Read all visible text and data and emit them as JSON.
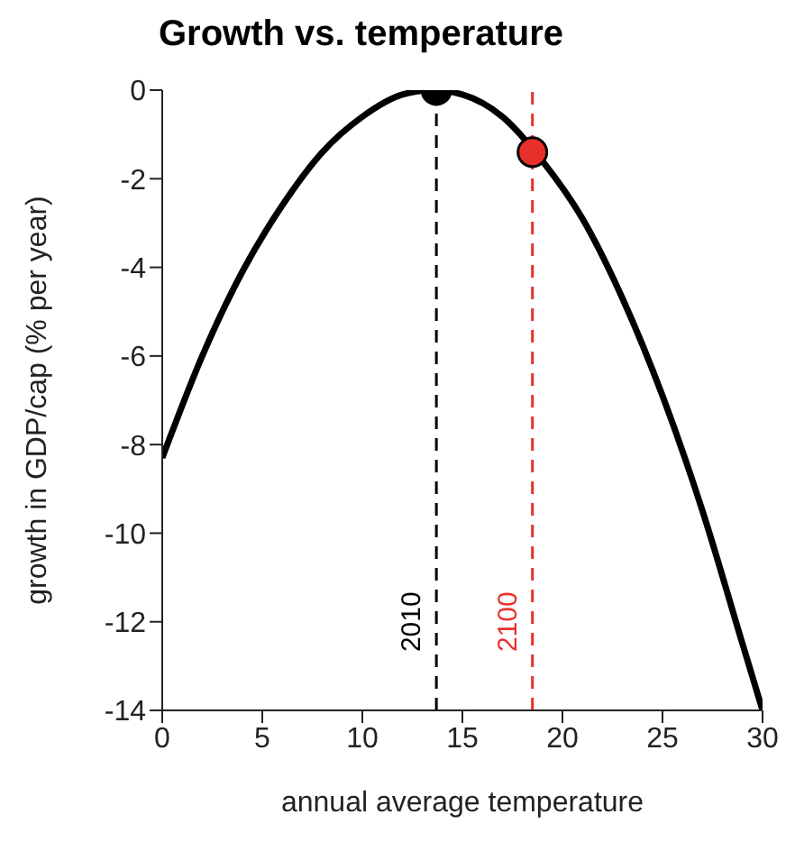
{
  "chart_data": {
    "type": "line",
    "title": "Growth vs. temperature",
    "xlabel": "annual average temperature",
    "ylabel": "growth in GDP/cap (% per year)",
    "xlim": [
      0,
      30
    ],
    "xticks": [
      0,
      5,
      10,
      15,
      20,
      25,
      30
    ],
    "ylim": [
      -14,
      0
    ],
    "yticks": [
      0,
      -2,
      -4,
      -6,
      -8,
      -10,
      -12,
      -14
    ],
    "grid": false,
    "series": [
      {
        "color": "#000000",
        "line_style": "solid",
        "marker": "none",
        "x": [
          0,
          2,
          4,
          6,
          8,
          10,
          12,
          13.5,
          15,
          17,
          19,
          21,
          23,
          25,
          27,
          29,
          30
        ],
        "values": [
          -8.3,
          -6.0,
          -4.1,
          -2.6,
          -1.4,
          -0.6,
          -0.1,
          0,
          -0.1,
          -0.6,
          -1.6,
          -2.9,
          -4.7,
          -6.9,
          -9.5,
          -12.5,
          -14
        ]
      },
      {
        "type": "scatter",
        "marker": "circle",
        "x": [
          13.7,
          18.5
        ],
        "values": [
          0,
          -1.4
        ],
        "colors": [
          "#000000",
          "#e8302a"
        ]
      }
    ],
    "ref_lines": [
      {
        "axis": "x",
        "value": 13.7,
        "color": "#000000",
        "line_style": "dashed"
      },
      {
        "axis": "x",
        "value": 18.5,
        "color": "#e8302a",
        "line_style": "dashed"
      }
    ],
    "annotations": [
      {
        "text": "2010",
        "x": 13.7,
        "y": -12
      },
      {
        "text": "2100",
        "x": 18.5,
        "y": -12
      }
    ]
  }
}
